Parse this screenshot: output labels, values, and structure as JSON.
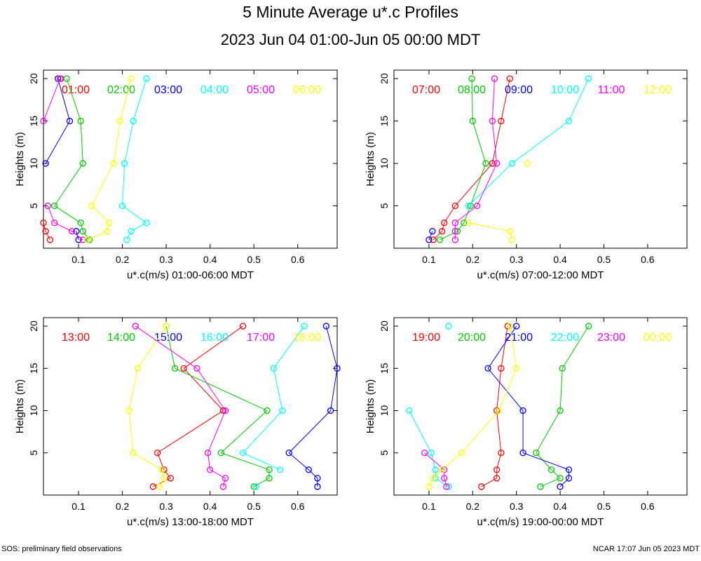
{
  "header": {
    "title": "5 Minute Average u*.c Profiles",
    "subtitle": "2023 Jun 04 01:00-Jun 05 00:00 MDT"
  },
  "footer": {
    "left": "SOS: preliminary field observations",
    "right": "NCAR 17:07 Jun 05 2023 MDT"
  },
  "colors": [
    "#ff0000",
    "#00cc00",
    "#0000ff",
    "#00ffff",
    "#ff00ff",
    "#ffff00"
  ],
  "chart_data": [
    {
      "type": "scatter",
      "panel": "top-left",
      "xlabel": "u*.c(m/s) 01:00-06:00 MDT",
      "ylabel": "Heights (m)",
      "xlim": [
        0.02,
        0.69
      ],
      "ylim": [
        0,
        21
      ],
      "xticks": [
        0.1,
        0.2,
        0.3,
        0.4,
        0.5,
        0.6
      ],
      "yticks": [
        5,
        10,
        15,
        20
      ],
      "series": [
        {
          "name": "01:00",
          "heights": [
            1,
            2,
            3,
            5,
            10,
            15,
            20
          ],
          "values": [
            0.035,
            0.025,
            0.02,
            null,
            null,
            null,
            0.06
          ]
        },
        {
          "name": "02:00",
          "heights": [
            1,
            2,
            3,
            5,
            10,
            15,
            20
          ],
          "values": [
            0.125,
            0.11,
            0.105,
            0.045,
            0.11,
            0.105,
            0.073
          ]
        },
        {
          "name": "03:00",
          "heights": [
            1,
            2,
            3,
            5,
            10,
            15,
            20
          ],
          "values": [
            0.1,
            0.095,
            null,
            null,
            0.025,
            0.08,
            0.053
          ]
        },
        {
          "name": "04:00",
          "heights": [
            1,
            2,
            3,
            5,
            10,
            15,
            20
          ],
          "values": [
            0.21,
            0.22,
            0.255,
            0.2,
            0.205,
            0.225,
            0.255
          ]
        },
        {
          "name": "05:00",
          "heights": [
            1,
            2,
            3,
            5,
            10,
            15,
            20
          ],
          "values": [
            0.11,
            0.085,
            0.045,
            0.03,
            null,
            0.02,
            0.058
          ]
        },
        {
          "name": "06:00",
          "heights": [
            1,
            2,
            3,
            5,
            10,
            15,
            20
          ],
          "values": [
            0.12,
            0.165,
            0.17,
            0.13,
            0.18,
            0.195,
            0.22
          ]
        }
      ]
    },
    {
      "type": "scatter",
      "panel": "top-right",
      "xlabel": "u*.c(m/s) 07:00-12:00 MDT",
      "ylabel": "Heights (m)",
      "xlim": [
        0.02,
        0.69
      ],
      "ylim": [
        0,
        21
      ],
      "xticks": [
        0.1,
        0.2,
        0.3,
        0.4,
        0.5,
        0.6
      ],
      "yticks": [
        5,
        10,
        15,
        20
      ],
      "series": [
        {
          "name": "07:00",
          "heights": [
            1,
            2,
            3,
            5,
            10,
            15,
            20
          ],
          "values": [
            0.11,
            0.13,
            0.135,
            0.16,
            0.245,
            0.265,
            0.285
          ]
        },
        {
          "name": "08:00",
          "heights": [
            1,
            2,
            3,
            5,
            10,
            15,
            20
          ],
          "values": [
            0.125,
            0.165,
            0.18,
            0.195,
            0.23,
            0.2,
            0.198
          ]
        },
        {
          "name": "09:00",
          "heights": [
            1,
            2,
            3,
            5,
            10,
            15,
            20
          ],
          "values": [
            0.1,
            0.108,
            null,
            null,
            null,
            null,
            null
          ]
        },
        {
          "name": "10:00",
          "heights": [
            1,
            2,
            3,
            5,
            10,
            15,
            20
          ],
          "values": [
            null,
            null,
            null,
            0.19,
            0.29,
            0.42,
            0.465
          ]
        },
        {
          "name": "11:00",
          "heights": [
            1,
            2,
            3,
            5,
            10,
            15,
            20
          ],
          "values": [
            0.16,
            0.16,
            0.16,
            0.21,
            0.255,
            0.245,
            0.25
          ]
        },
        {
          "name": "12:00",
          "heights": [
            1,
            2,
            3,
            5,
            10,
            15,
            20
          ],
          "values": [
            0.29,
            0.285,
            0.19,
            null,
            0.325,
            null,
            null
          ]
        }
      ]
    },
    {
      "type": "scatter",
      "panel": "bottom-left",
      "xlabel": "u*.c(m/s) 13:00-18:00 MDT",
      "ylabel": "Heights (m)",
      "xlim": [
        0.02,
        0.69
      ],
      "ylim": [
        0,
        21
      ],
      "xticks": [
        0.1,
        0.2,
        0.3,
        0.4,
        0.5,
        0.6
      ],
      "yticks": [
        5,
        10,
        15,
        20
      ],
      "series": [
        {
          "name": "13:00",
          "heights": [
            1,
            2,
            3,
            5,
            10,
            15,
            20
          ],
          "values": [
            0.27,
            0.31,
            0.295,
            0.28,
            0.43,
            0.34,
            0.475
          ]
        },
        {
          "name": "14:00",
          "heights": [
            1,
            2,
            3,
            5,
            10,
            15,
            20
          ],
          "values": [
            0.5,
            0.535,
            0.535,
            0.425,
            0.53,
            0.32,
            0.3
          ]
        },
        {
          "name": "15:00",
          "heights": [
            1,
            2,
            3,
            5,
            10,
            15,
            20
          ],
          "values": [
            0.645,
            0.645,
            0.625,
            0.58,
            0.675,
            0.69,
            0.665
          ]
        },
        {
          "name": "16:00",
          "heights": [
            1,
            2,
            3,
            5,
            10,
            15,
            20
          ],
          "values": [
            0.505,
            null,
            0.56,
            0.475,
            0.565,
            0.545,
            0.615
          ]
        },
        {
          "name": "17:00",
          "heights": [
            1,
            2,
            3,
            5,
            10,
            15,
            20
          ],
          "values": [
            0.43,
            0.435,
            0.4,
            0.395,
            0.435,
            0.37,
            0.23
          ]
        },
        {
          "name": "18:00",
          "heights": [
            1,
            2,
            3,
            5,
            10,
            15,
            20
          ],
          "values": [
            0.285,
            0.295,
            0.29,
            0.225,
            0.215,
            0.235,
            0.3
          ]
        }
      ]
    },
    {
      "type": "scatter",
      "panel": "bottom-right",
      "xlabel": "u*.c(m/s) 19:00-00:00 MDT",
      "ylabel": "Heights (m)",
      "xlim": [
        0.02,
        0.69
      ],
      "ylim": [
        0,
        21
      ],
      "xticks": [
        0.1,
        0.2,
        0.3,
        0.4,
        0.5,
        0.6
      ],
      "yticks": [
        5,
        10,
        15,
        20
      ],
      "series": [
        {
          "name": "19:00",
          "heights": [
            1,
            2,
            3,
            5,
            10,
            15,
            20
          ],
          "values": [
            0.22,
            0.255,
            0.255,
            0.265,
            0.255,
            0.265,
            0.28
          ]
        },
        {
          "name": "20:00",
          "heights": [
            1,
            2,
            3,
            5,
            10,
            15,
            20
          ],
          "values": [
            0.355,
            0.4,
            0.38,
            0.345,
            0.4,
            0.405,
            0.465
          ]
        },
        {
          "name": "21:00",
          "heights": [
            1,
            2,
            3,
            5,
            10,
            15,
            20
          ],
          "values": [
            0.4,
            0.42,
            0.42,
            0.315,
            0.315,
            0.235,
            0.3
          ]
        },
        {
          "name": "22:00",
          "heights": [
            1,
            2,
            3,
            5,
            10,
            15,
            20
          ],
          "values": [
            0.145,
            0.115,
            0.115,
            0.105,
            0.055,
            null,
            0.145
          ]
        },
        {
          "name": "23:00",
          "heights": [
            1,
            2,
            3,
            5,
            10,
            15,
            20
          ],
          "values": [
            0.14,
            0.135,
            0.135,
            0.09,
            null,
            null,
            null
          ]
        },
        {
          "name": "00:00",
          "heights": [
            1,
            2,
            3,
            5,
            10,
            15,
            20
          ],
          "values": [
            0.1,
            0.11,
            0.13,
            0.175,
            0.26,
            0.3,
            0.285
          ]
        }
      ]
    }
  ]
}
